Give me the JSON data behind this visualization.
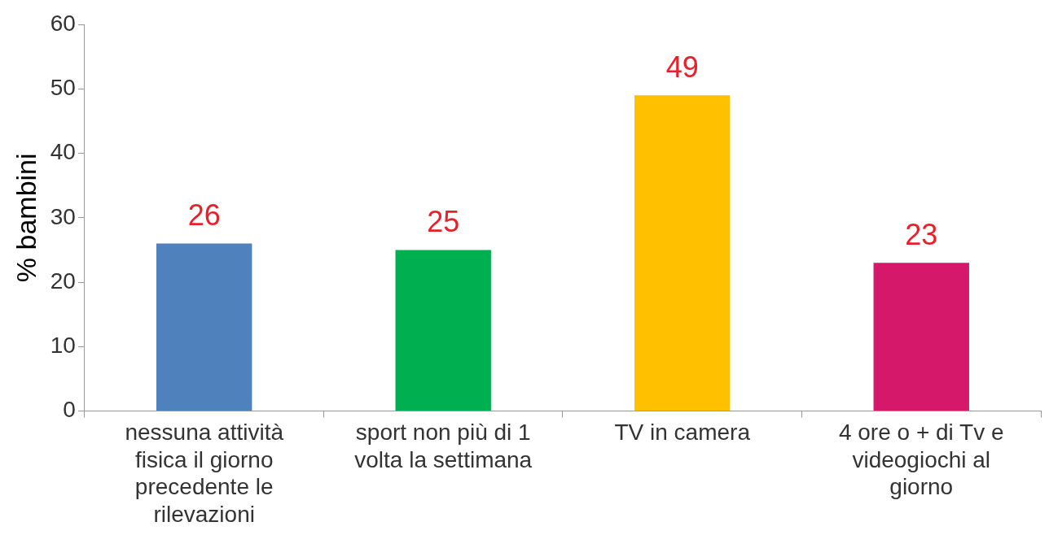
{
  "chart_data": {
    "type": "bar",
    "ylabel": "% bambini",
    "categories": [
      "nessuna attività fisica il giorno precedente le rilevazioni",
      "sport non più di 1 volta la settimana",
      "TV in camera",
      "4 ore o + di Tv e videogiochi al giorno"
    ],
    "values": [
      26,
      25,
      49,
      23
    ],
    "colors": [
      "#4f81bd",
      "#00b050",
      "#ffc000",
      "#d6186a"
    ],
    "ylim": [
      0,
      60
    ],
    "yticks": [
      0,
      10,
      20,
      30,
      40,
      50,
      60
    ],
    "grid": false,
    "legend": false,
    "data_labels": true
  }
}
